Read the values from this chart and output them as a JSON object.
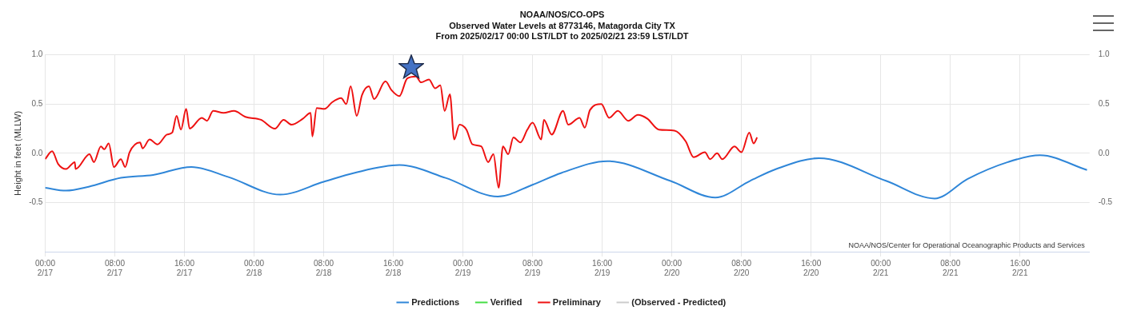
{
  "chart_data": {
    "type": "line",
    "title": "NOAA/NOS/CO-OPS",
    "subtitle": "Observed Water Levels at 8773146, Matagorda City TX\nFrom 2025/02/17 00:00 LST/LDT to 2025/02/21 23:59 LST/LDT",
    "ylabel": "Height in feet (MLLW)",
    "xlim": [
      "2025-02-17T00:00",
      "2025-02-22T00:00"
    ],
    "xticks": [
      {
        "value": "2025-02-17T00:00",
        "label": "00:00\n2/17"
      },
      {
        "value": "2025-02-17T08:00",
        "label": "08:00\n2/17"
      },
      {
        "value": "2025-02-17T16:00",
        "label": "16:00\n2/17"
      },
      {
        "value": "2025-02-18T00:00",
        "label": "00:00\n2/18"
      },
      {
        "value": "2025-02-18T08:00",
        "label": "08:00\n2/18"
      },
      {
        "value": "2025-02-18T16:00",
        "label": "16:00\n2/18"
      },
      {
        "value": "2025-02-19T00:00",
        "label": "00:00\n2/19"
      },
      {
        "value": "2025-02-19T08:00",
        "label": "08:00\n2/19"
      },
      {
        "value": "2025-02-19T16:00",
        "label": "16:00\n2/19"
      },
      {
        "value": "2025-02-20T00:00",
        "label": "00:00\n2/20"
      },
      {
        "value": "2025-02-20T08:00",
        "label": "08:00\n2/20"
      },
      {
        "value": "2025-02-20T16:00",
        "label": "16:00\n2/20"
      },
      {
        "value": "2025-02-21T00:00",
        "label": "00:00\n2/21"
      },
      {
        "value": "2025-02-21T08:00",
        "label": "08:00\n2/21"
      },
      {
        "value": "2025-02-21T16:00",
        "label": "16:00\n2/21"
      }
    ],
    "ylim": [
      -1,
      1
    ],
    "yticks": [
      {
        "value": -0.5,
        "label": "-0.5"
      },
      {
        "value": 0,
        "label": "0.0"
      },
      {
        "value": 0.5,
        "label": "0.5"
      },
      {
        "value": 1,
        "label": "1.0"
      }
    ],
    "y2lim": [
      -1,
      1
    ],
    "y2ticks": [
      {
        "value": -0.5,
        "label": "-0.5"
      },
      {
        "value": 0,
        "label": "0.0"
      },
      {
        "value": 0.5,
        "label": "0.5"
      },
      {
        "value": 1,
        "label": "1.0"
      }
    ],
    "grid": true,
    "legend": "bottom",
    "marker": "none",
    "line_style": "solid",
    "annotations": [
      "NOAA/NOS/Center for Operational Oceanographic Products and Services"
    ],
    "series": [
      {
        "name": "Predictions",
        "color": "#2f86d8",
        "x": [
          "2025-02-17T00:00",
          "2025-02-17T02:24",
          "2025-02-17T05:00",
          "2025-02-17T08:42",
          "2025-02-17T12:24",
          "2025-02-17T16:48",
          "2025-02-17T21:00",
          "2025-02-18T03:00",
          "2025-02-18T08:00",
          "2025-02-18T11:30",
          "2025-02-18T16:42",
          "2025-02-18T22:00",
          "2025-02-19T04:00",
          "2025-02-19T08:00",
          "2025-02-19T11:18",
          "2025-02-19T16:36",
          "2025-02-19T23:48",
          "2025-02-20T05:00",
          "2025-02-20T09:00",
          "2025-02-20T12:00",
          "2025-02-20T16:54",
          "2025-02-21T00:36",
          "2025-02-21T06:12",
          "2025-02-21T10:00",
          "2025-02-21T14:36",
          "2025-02-21T18:18",
          "2025-02-21T23:42"
        ],
        "values": [
          -0.35,
          -0.38,
          -0.34,
          -0.25,
          -0.22,
          -0.14,
          -0.24,
          -0.42,
          -0.29,
          -0.2,
          -0.12,
          -0.25,
          -0.44,
          -0.32,
          -0.2,
          -0.08,
          -0.28,
          -0.45,
          -0.28,
          -0.16,
          -0.05,
          -0.28,
          -0.46,
          -0.26,
          -0.09,
          -0.02,
          -0.17
        ]
      },
      {
        "name": "Verified",
        "color": "#44dd44"
      },
      {
        "name": "Preliminary",
        "color": "#ee1111",
        "x": [
          "2025-02-17T00:00",
          "2025-02-17T00:48",
          "2025-02-17T01:30",
          "2025-02-17T02:24",
          "2025-02-17T03:24",
          "2025-02-17T03:30",
          "2025-02-17T05:06",
          "2025-02-17T05:36",
          "2025-02-17T06:24",
          "2025-02-17T06:48",
          "2025-02-17T07:18",
          "2025-02-17T07:54",
          "2025-02-17T08:42",
          "2025-02-17T09:12",
          "2025-02-17T09:42",
          "2025-02-17T10:54",
          "2025-02-17T11:12",
          "2025-02-17T12:00",
          "2025-02-17T12:54",
          "2025-02-17T14:00",
          "2025-02-17T14:36",
          "2025-02-17T15:06",
          "2025-02-17T15:36",
          "2025-02-17T16:12",
          "2025-02-17T16:36",
          "2025-02-17T18:00",
          "2025-02-17T18:36",
          "2025-02-17T19:18",
          "2025-02-17T20:30",
          "2025-02-17T21:42",
          "2025-02-17T23:00",
          "2025-02-18T00:48",
          "2025-02-18T02:24",
          "2025-02-18T03:24",
          "2025-02-18T04:18",
          "2025-02-18T05:36",
          "2025-02-18T06:30",
          "2025-02-18T06:42",
          "2025-02-18T07:12",
          "2025-02-18T08:06",
          "2025-02-18T09:00",
          "2025-02-18T10:00",
          "2025-02-18T10:36",
          "2025-02-18T11:06",
          "2025-02-18T11:48",
          "2025-02-18T12:24",
          "2025-02-18T13:12",
          "2025-02-18T13:48",
          "2025-02-18T15:06",
          "2025-02-18T15:48",
          "2025-02-18T16:42",
          "2025-02-18T17:36",
          "2025-02-18T18:36",
          "2025-02-18T19:12",
          "2025-02-18T20:06",
          "2025-02-18T20:48",
          "2025-02-18T21:24",
          "2025-02-18T21:54",
          "2025-02-18T22:30",
          "2025-02-18T23:00",
          "2025-02-18T23:36",
          "2025-02-19T00:24",
          "2025-02-19T01:06",
          "2025-02-19T02:06",
          "2025-02-19T02:54",
          "2025-02-19T03:30",
          "2025-02-19T04:06",
          "2025-02-19T04:36",
          "2025-02-19T05:12",
          "2025-02-19T05:48",
          "2025-02-19T06:36",
          "2025-02-19T07:24",
          "2025-02-19T08:00",
          "2025-02-19T09:00",
          "2025-02-19T09:18",
          "2025-02-19T10:12",
          "2025-02-19T11:30",
          "2025-02-19T12:06",
          "2025-02-19T13:24",
          "2025-02-19T14:00",
          "2025-02-19T14:36",
          "2025-02-19T15:54",
          "2025-02-19T16:48",
          "2025-02-19T17:48",
          "2025-02-19T19:00",
          "2025-02-19T20:06",
          "2025-02-19T21:12",
          "2025-02-19T22:30",
          "2025-02-20T00:18",
          "2025-02-20T01:36",
          "2025-02-20T02:30",
          "2025-02-20T03:48",
          "2025-02-20T04:24",
          "2025-02-20T05:12",
          "2025-02-20T05:48",
          "2025-02-20T07:12",
          "2025-02-20T08:00",
          "2025-02-20T08:54",
          "2025-02-20T09:24",
          "2025-02-20T09:48"
        ],
        "values": [
          -0.06,
          0.02,
          -0.11,
          -0.16,
          -0.09,
          -0.16,
          -0.01,
          -0.09,
          0.07,
          0.04,
          0.1,
          -0.14,
          -0.06,
          -0.14,
          0.01,
          0.11,
          0.05,
          0.14,
          0.09,
          0.19,
          0.21,
          0.38,
          0.24,
          0.45,
          0.25,
          0.36,
          0.33,
          0.43,
          0.41,
          0.43,
          0.37,
          0.34,
          0.25,
          0.34,
          0.29,
          0.35,
          0.41,
          0.17,
          0.46,
          0.45,
          0.52,
          0.56,
          0.5,
          0.68,
          0.38,
          0.59,
          0.68,
          0.55,
          0.73,
          0.64,
          0.58,
          0.76,
          0.78,
          0.72,
          0.75,
          0.66,
          0.69,
          0.43,
          0.6,
          0.14,
          0.29,
          0.24,
          0.09,
          0.07,
          -0.09,
          -0.01,
          -0.35,
          0.07,
          -0.01,
          0.16,
          0.11,
          0.24,
          0.31,
          0.14,
          0.34,
          0.19,
          0.43,
          0.29,
          0.36,
          0.26,
          0.44,
          0.5,
          0.36,
          0.43,
          0.33,
          0.39,
          0.35,
          0.24,
          0.23,
          0.12,
          -0.04,
          0.01,
          -0.06,
          0,
          -0.06,
          0.07,
          0.01,
          0.21,
          0.1,
          0.16
        ]
      },
      {
        "name": "(Observed - Predicted)",
        "color": "#cccccc"
      }
    ]
  }
}
